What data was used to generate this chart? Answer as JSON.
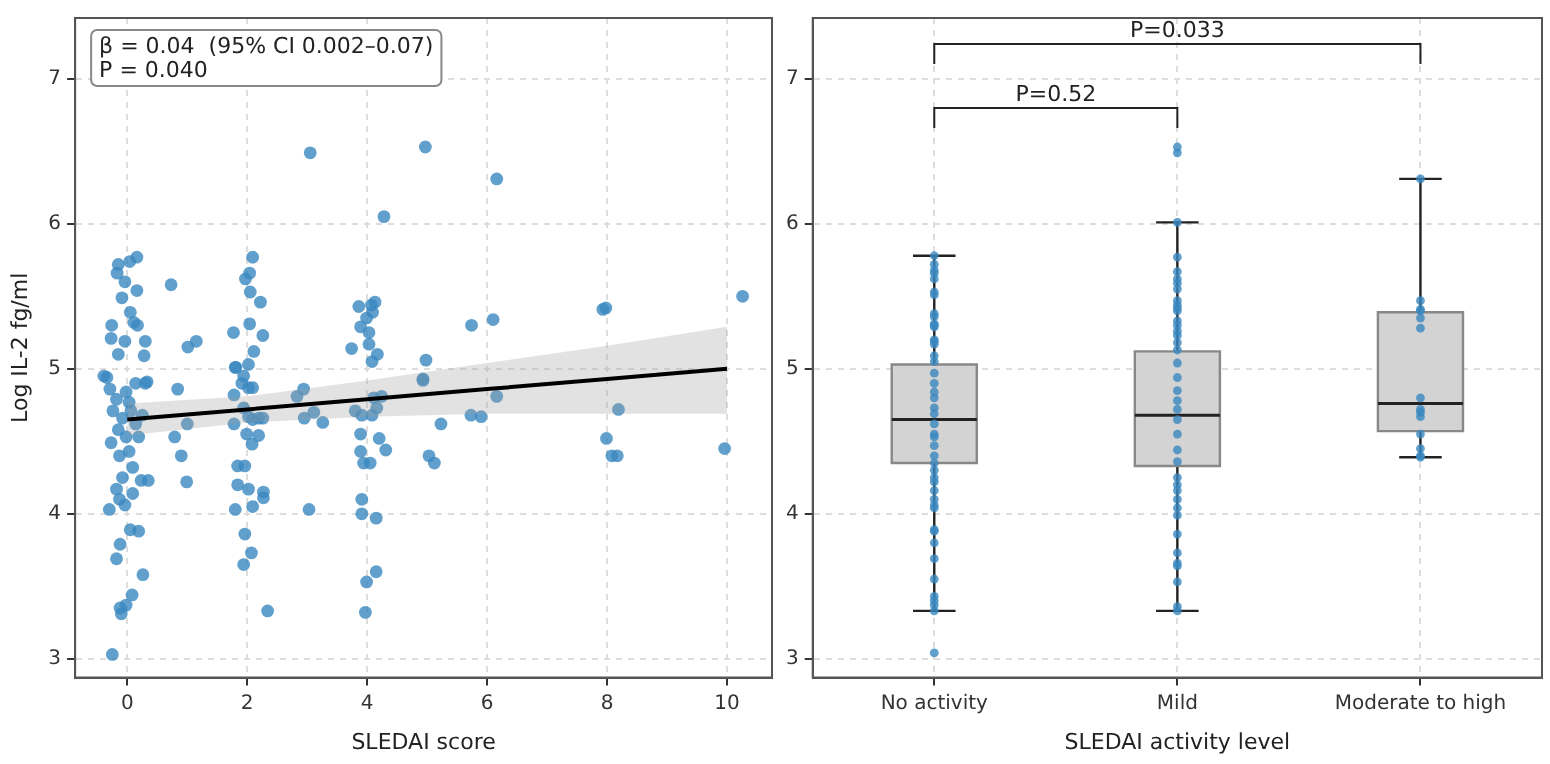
{
  "chart_data": [
    {
      "type": "scatter",
      "xlabel": "SLEDAI score",
      "ylabel": "Log IL-2 fg/ml",
      "annotations": [
        "β = 0.04  (95% CI 0.002–0.07)\nP = 0.040"
      ],
      "xlim": [
        -0.87,
        10.75
      ],
      "ylim": [
        2.87,
        7.42
      ],
      "xticks": [
        0,
        2,
        4,
        6,
        8,
        10
      ],
      "yticks": [
        3,
        4,
        5,
        6,
        7
      ],
      "grid": true,
      "legend": false,
      "series": [
        {
          "type": "scatter",
          "marker": "circle",
          "color": "#3a88c1",
          "x": [
            3.05,
            4.97,
            6.16,
            4.28,
            0.16,
            0.04,
            -0.15,
            -0.17,
            -0.04,
            0.16,
            -0.09,
            0.73,
            2.09,
            2.04,
            1.97,
            2.05,
            2.22,
            0.05,
            0.11,
            -0.26,
            0.17,
            -0.27,
            -0.04,
            0.3,
            1.15,
            1.01,
            -0.39,
            0.33,
            -0.15,
            0.28,
            1.77,
            2.04,
            2.26,
            2.11,
            1.81,
            1.94,
            2.02,
            3.86,
            4.13,
            4.07,
            4.09,
            3.99,
            3.89,
            4.03,
            4.03,
            3.74,
            4.17,
            4.08,
            4.98,
            4.93,
            5.74,
            6.1,
            7.93,
            7.98,
            10.26,
            -0.34,
            -0.29,
            -0.18,
            -0.24,
            -0.27,
            -0.15,
            -0.02,
            0.14,
            0.3,
            0.25,
            0.19,
            0.03,
            -0.13,
            0.09,
            -0.08,
            -0.18,
            -0.13,
            -0.04,
            0.09,
            0.23,
            0.35,
            -0.3,
            0.05,
            0.19,
            -0.12,
            -0.18,
            0.26,
            0.08,
            -0.02,
            -0.12,
            -0.1,
            -0.25,
            0.84,
            0.79,
            1.0,
            0.9,
            0.99,
            1.8,
            1.78,
            1.78,
            1.91,
            2.02,
            2.09,
            1.94,
            2.02,
            2.09,
            2.19,
            2.26,
            1.99,
            2.08,
            2.19,
            1.84,
            1.96,
            1.84,
            2.02,
            2.27,
            2.27,
            1.8,
            2.09,
            1.96,
            1.94,
            2.07,
            2.34,
            2.94,
            2.83,
            2.95,
            3.11,
            3.26,
            3.03,
            3.8,
            3.91,
            4.08,
            4.11,
            4.24,
            4.16,
            3.89,
            4.2,
            4.31,
            3.89,
            3.94,
            4.05,
            3.91,
            3.91,
            4.15,
            4.15,
            3.99,
            3.97,
            4.93,
            5.03,
            5.12,
            5.23,
            5.73,
            5.9,
            6.16,
            7.99,
            8.08,
            8.17,
            8.19,
            9.96,
            -0.02,
            0.03,
            0.14,
            -0.08,
            0.06
          ],
          "values": [
            6.49,
            6.53,
            6.31,
            6.05,
            5.77,
            5.74,
            5.72,
            5.66,
            5.6,
            5.54,
            5.49,
            5.58,
            5.77,
            5.66,
            5.62,
            5.53,
            5.46,
            5.39,
            5.32,
            5.3,
            5.3,
            5.21,
            5.19,
            5.19,
            5.19,
            5.15,
            4.95,
            4.91,
            5.1,
            5.09,
            5.25,
            5.31,
            5.23,
            5.12,
            5.01,
            4.95,
            5.03,
            5.43,
            5.46,
            5.44,
            5.39,
            5.35,
            5.29,
            5.25,
            5.17,
            5.14,
            5.1,
            5.05,
            5.06,
            4.93,
            5.3,
            5.34,
            5.41,
            5.42,
            5.5,
            4.94,
            4.86,
            4.79,
            4.71,
            4.49,
            4.58,
            4.53,
            4.62,
            4.9,
            4.68,
            4.53,
            4.43,
            4.4,
            4.32,
            4.25,
            4.17,
            4.1,
            4.06,
            4.14,
            4.23,
            4.23,
            4.03,
            3.89,
            3.88,
            3.79,
            3.69,
            3.58,
            3.44,
            3.37,
            3.35,
            3.31,
            3.03,
            4.86,
            4.53,
            4.62,
            4.4,
            4.22,
            5.01,
            4.82,
            4.62,
            4.9,
            4.87,
            4.87,
            4.73,
            4.67,
            4.65,
            4.66,
            4.66,
            4.55,
            4.48,
            4.54,
            4.33,
            4.33,
            4.2,
            4.17,
            4.15,
            4.11,
            4.03,
            4.05,
            3.86,
            3.65,
            3.73,
            3.33,
            4.86,
            4.81,
            4.66,
            4.7,
            4.63,
            4.03,
            4.71,
            4.68,
            4.68,
            4.8,
            4.81,
            4.73,
            4.55,
            4.52,
            4.44,
            4.43,
            4.35,
            4.35,
            4.1,
            4.0,
            3.97,
            3.6,
            3.53,
            3.32,
            4.92,
            4.4,
            4.35,
            4.62,
            4.68,
            4.67,
            4.81,
            4.52,
            4.4,
            4.4,
            4.72,
            4.45,
            4.84,
            4.77,
            4.9,
            4.66,
            4.71
          ]
        },
        {
          "type": "line",
          "marker": "none",
          "color": "#000000",
          "x": [
            0,
            2,
            4,
            6,
            8,
            10
          ],
          "values": [
            4.65,
            4.72,
            4.79,
            4.86,
            4.93,
            5.0
          ],
          "lower": [
            4.54,
            4.63,
            4.67,
            4.69,
            4.69,
            4.69
          ],
          "upper": [
            4.76,
            4.81,
            4.92,
            5.04,
            5.16,
            5.29
          ]
        }
      ]
    },
    {
      "type": "box",
      "xlabel": "SLEDAI activity level",
      "categories": [
        "No activity",
        "Mild",
        "Moderate to high"
      ],
      "color": "#d3d3d3",
      "annotations": [
        "P=0.033",
        "P=0.52"
      ],
      "ylim": [
        2.87,
        7.42
      ],
      "yticks": [
        3,
        4,
        5,
        6,
        7
      ],
      "grid": true,
      "legend": false,
      "marker": "circle",
      "boxes": [
        {
          "low": 3.33,
          "q1": 4.35,
          "median": 4.65,
          "q3": 5.03,
          "high": 5.78
        },
        {
          "low": 3.33,
          "q1": 4.33,
          "median": 4.68,
          "q3": 5.12,
          "high": 6.01
        },
        {
          "low": 4.39,
          "q1": 4.57,
          "median": 4.76,
          "q3": 5.39,
          "high": 6.31
        }
      ],
      "series": [
        {
          "type": "scatter",
          "color": "#3a88c1",
          "x": [
            "No activity",
            "No activity",
            "No activity",
            "No activity",
            "No activity",
            "No activity",
            "No activity",
            "No activity",
            "No activity",
            "No activity",
            "No activity",
            "No activity",
            "No activity",
            "No activity",
            "No activity",
            "No activity",
            "No activity",
            "No activity",
            "No activity",
            "No activity",
            "No activity",
            "No activity",
            "No activity",
            "No activity",
            "No activity",
            "No activity",
            "No activity",
            "No activity",
            "No activity",
            "No activity",
            "No activity",
            "No activity",
            "No activity",
            "No activity",
            "No activity",
            "No activity",
            "No activity",
            "No activity",
            "No activity",
            "No activity",
            "No activity",
            "No activity",
            "No activity",
            "No activity",
            "No activity",
            "No activity",
            "Mild",
            "Mild",
            "Mild",
            "Mild",
            "Mild",
            "Mild",
            "Mild",
            "Mild",
            "Mild",
            "Mild",
            "Mild",
            "Mild",
            "Mild",
            "Mild",
            "Mild",
            "Mild",
            "Mild",
            "Mild",
            "Mild",
            "Mild",
            "Mild",
            "Mild",
            "Mild",
            "Mild",
            "Mild",
            "Mild",
            "Mild",
            "Mild",
            "Mild",
            "Mild",
            "Mild",
            "Mild",
            "Mild",
            "Mild",
            "Mild",
            "Mild",
            "Mild",
            "Mild",
            "Mild",
            "Mild",
            "Moderate to high",
            "Moderate to high",
            "Moderate to high",
            "Moderate to high",
            "Moderate to high",
            "Moderate to high",
            "Moderate to high",
            "Moderate to high",
            "Moderate to high",
            "Moderate to high",
            "Moderate to high",
            "Moderate to high",
            "Moderate to high",
            "Moderate to high"
          ],
          "values": [
            5.78,
            5.72,
            5.68,
            5.66,
            5.62,
            5.53,
            5.51,
            5.31,
            5.3,
            5.36,
            5.2,
            5.19,
            5.29,
            5.38,
            5.17,
            5.09,
            5.05,
            4.97,
            4.8,
            4.73,
            4.55,
            4.47,
            4.4,
            4.35,
            4.3,
            4.25,
            4.22,
            4.16,
            4.1,
            4.06,
            4.04,
            3.89,
            3.88,
            3.8,
            3.69,
            3.55,
            3.43,
            3.4,
            3.37,
            3.33,
            3.04,
            4.53,
            4.62,
            4.69,
            4.84,
            4.9,
            6.53,
            6.49,
            6.01,
            5.77,
            5.67,
            5.62,
            5.59,
            5.55,
            5.47,
            5.44,
            5.42,
            5.4,
            5.33,
            5.3,
            5.26,
            5.23,
            5.18,
            5.13,
            5.04,
            4.94,
            4.78,
            4.65,
            4.55,
            4.44,
            4.36,
            4.25,
            4.2,
            4.16,
            4.1,
            4.04,
            3.99,
            3.86,
            3.73,
            3.66,
            3.64,
            3.53,
            3.36,
            3.33,
            4.85,
            4.72,
            6.31,
            5.47,
            5.41,
            5.4,
            5.35,
            5.28,
            4.8,
            4.72,
            4.7,
            4.67,
            4.55,
            4.45,
            4.4,
            4.39
          ]
        }
      ]
    }
  ]
}
